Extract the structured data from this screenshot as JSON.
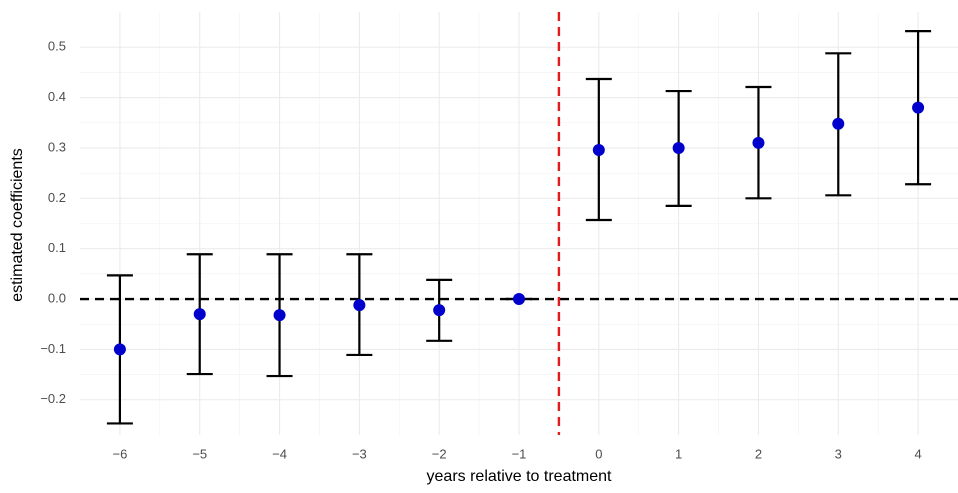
{
  "chart_data": {
    "type": "errorbar",
    "x_label": "years relative to treatment",
    "y_label": "estimated coefficients",
    "x": [
      -6,
      -5,
      -4,
      -3,
      -2,
      -1,
      0,
      1,
      2,
      3,
      4
    ],
    "values": [
      -0.1,
      -0.03,
      -0.032,
      -0.012,
      -0.022,
      0,
      0.296,
      0.3,
      0.31,
      0.348,
      0.38
    ],
    "lower": [
      -0.247,
      -0.149,
      -0.153,
      -0.111,
      -0.083,
      0,
      0.157,
      0.185,
      0.2,
      0.206,
      0.228
    ],
    "upper": [
      0.047,
      0.089,
      0.089,
      0.089,
      0.038,
      0,
      0.437,
      0.413,
      0.421,
      0.488,
      0.532
    ],
    "color": "#0000cc",
    "errorbar_color": "#000000",
    "xlim": [
      -6.5,
      4.5
    ],
    "ylim": [
      -0.27,
      0.57
    ],
    "xticks": [
      {
        "value": -6,
        "label": "−6"
      },
      {
        "value": -5,
        "label": "−5"
      },
      {
        "value": -4,
        "label": "−4"
      },
      {
        "value": -3,
        "label": "−3"
      },
      {
        "value": -2,
        "label": "−2"
      },
      {
        "value": -1,
        "label": "−1"
      },
      0,
      1,
      2,
      3,
      4
    ],
    "yticks": [
      {
        "value": -0.2,
        "label": "−0.2"
      },
      {
        "value": -0.1,
        "label": "−0.1"
      },
      {
        "value": 0,
        "label": "0.0"
      },
      0.1,
      0.2,
      0.3,
      0.4,
      0.5
    ],
    "hline": 0,
    "hline_color": "#000000",
    "vline": -0.5,
    "vline_color": "#e41a1c",
    "grid": true
  }
}
